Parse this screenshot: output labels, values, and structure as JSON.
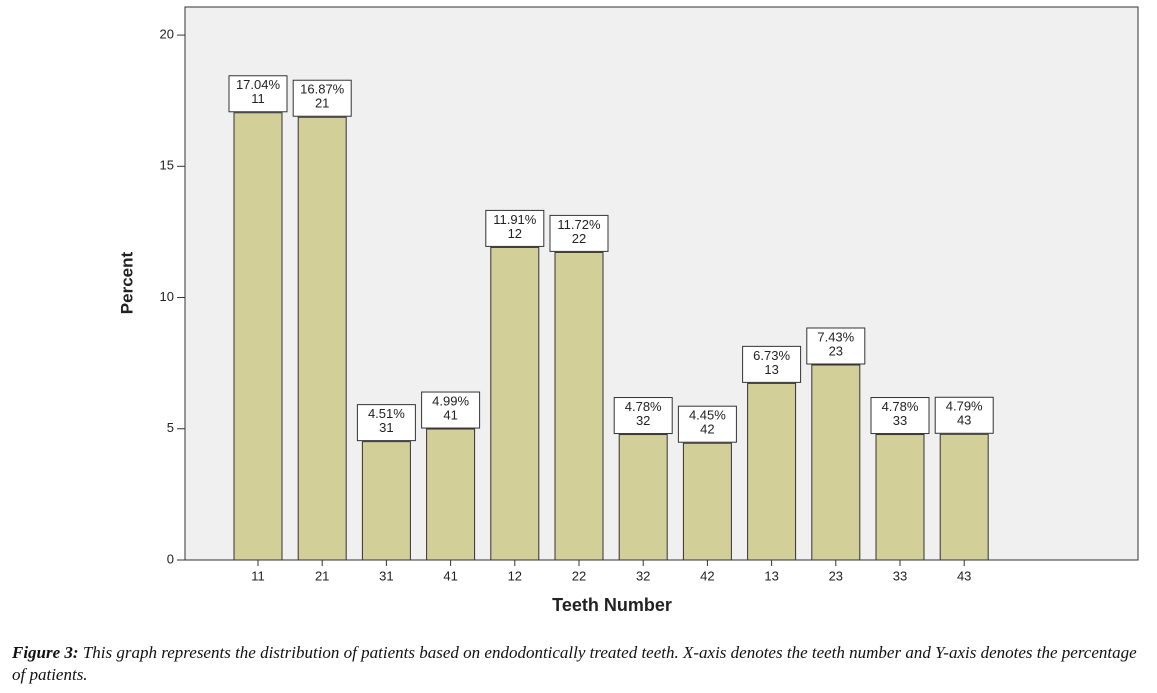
{
  "chart_data": {
    "type": "bar",
    "x_label": "Teeth Number",
    "y_label": "Percent",
    "categories": [
      "11",
      "21",
      "31",
      "41",
      "12",
      "22",
      "32",
      "42",
      "13",
      "23",
      "33",
      "43"
    ],
    "values": [
      17.04,
      16.87,
      4.51,
      4.99,
      11.91,
      11.72,
      4.78,
      4.45,
      6.73,
      7.43,
      4.78,
      4.79
    ],
    "value_labels": [
      "17.04%",
      "16.87%",
      "4.51%",
      "4.99%",
      "11.91%",
      "11.72%",
      "4.78%",
      "4.45%",
      "6.73%",
      "7.43%",
      "4.78%",
      "4.79%"
    ],
    "color": "#d3cf99",
    "ylim": [
      0,
      21.07
    ],
    "yticks": [
      0,
      5,
      10,
      15,
      20
    ]
  },
  "caption": {
    "label": "Figure 3:",
    "text": "This graph represents the distribution of patients based on endodontically treated teeth. X-axis denotes the teeth number and Y-axis denotes the percentage of patients."
  }
}
